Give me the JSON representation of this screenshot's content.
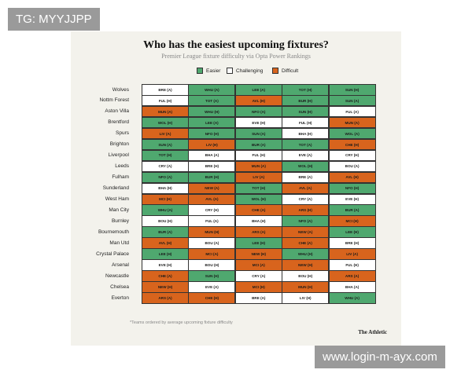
{
  "watermarks": {
    "top_left": "TG: MYYJJPP",
    "bottom_right": "www.login-m-ayx.com"
  },
  "header": {
    "title": "Who has the easiest upcoming fixtures?",
    "subtitle": "Premier League fixture difficulty via Opta Power Rankings"
  },
  "legend": {
    "items": [
      {
        "label": "Easier",
        "color": "#4fa86f"
      },
      {
        "label": "Challenging",
        "color": "#ffffff"
      },
      {
        "label": "Difficult",
        "color": "#d8641d"
      }
    ]
  },
  "table": {
    "rows": [
      {
        "team": "Wolves",
        "cells": [
          {
            "text": "BRE (A)",
            "level": 1
          },
          {
            "text": "WHU (A)",
            "level": 0
          },
          {
            "text": "LEE (A)",
            "level": 0
          },
          {
            "text": "TOT (H)",
            "level": 0
          },
          {
            "text": "SUN (H)",
            "level": 0
          }
        ]
      },
      {
        "team": "Nottm Forest",
        "cells": [
          {
            "text": "FUL (H)",
            "level": 1
          },
          {
            "text": "TOT (A)",
            "level": 0
          },
          {
            "text": "AVL (H)",
            "level": 2
          },
          {
            "text": "BUR (H)",
            "level": 0
          },
          {
            "text": "SUN (A)",
            "level": 0
          }
        ]
      },
      {
        "team": "Aston Villa",
        "cells": [
          {
            "text": "MUN (A)",
            "level": 2
          },
          {
            "text": "WHU (H)",
            "level": 0
          },
          {
            "text": "NFO (A)",
            "level": 0
          },
          {
            "text": "SUN (H)",
            "level": 0
          },
          {
            "text": "FUL (A)",
            "level": 1
          }
        ]
      },
      {
        "team": "Brentford",
        "cells": [
          {
            "text": "WOL (H)",
            "level": 0
          },
          {
            "text": "LEE (A)",
            "level": 0
          },
          {
            "text": "EVE (H)",
            "level": 1
          },
          {
            "text": "FUL (H)",
            "level": 1
          },
          {
            "text": "MUN (A)",
            "level": 2
          }
        ]
      },
      {
        "team": "Spurs",
        "cells": [
          {
            "text": "LIV (A)",
            "level": 2
          },
          {
            "text": "NFO (H)",
            "level": 0
          },
          {
            "text": "SUN (A)",
            "level": 0
          },
          {
            "text": "BHA (H)",
            "level": 1
          },
          {
            "text": "WOL (A)",
            "level": 0
          }
        ]
      },
      {
        "team": "Brighton",
        "cells": [
          {
            "text": "SUN (A)",
            "level": 0
          },
          {
            "text": "LIV (H)",
            "level": 2
          },
          {
            "text": "BUR (A)",
            "level": 0
          },
          {
            "text": "TOT (A)",
            "level": 0
          },
          {
            "text": "CHE (H)",
            "level": 2
          }
        ]
      },
      {
        "team": "Liverpool",
        "cells": [
          {
            "text": "TOT (H)",
            "level": 0
          },
          {
            "text": "BHA (A)",
            "level": 1
          },
          {
            "text": "FUL (H)",
            "level": 1
          },
          {
            "text": "EVE (A)",
            "level": 1
          },
          {
            "text": "CRY (H)",
            "level": 1
          }
        ]
      },
      {
        "team": "Leeds",
        "cells": [
          {
            "text": "CRY (A)",
            "level": 1
          },
          {
            "text": "BRE (H)",
            "level": 1
          },
          {
            "text": "MUN (A)",
            "level": 2
          },
          {
            "text": "WOL (H)",
            "level": 0
          },
          {
            "text": "BOU (A)",
            "level": 1
          }
        ]
      },
      {
        "team": "Fulham",
        "cells": [
          {
            "text": "NFO (A)",
            "level": 0
          },
          {
            "text": "BUR (H)",
            "level": 0
          },
          {
            "text": "LIV (A)",
            "level": 2
          },
          {
            "text": "BRE (A)",
            "level": 1
          },
          {
            "text": "AVL (H)",
            "level": 2
          }
        ]
      },
      {
        "team": "Sunderland",
        "cells": [
          {
            "text": "BHA (H)",
            "level": 1
          },
          {
            "text": "NEW (A)",
            "level": 2
          },
          {
            "text": "TOT (H)",
            "level": 0
          },
          {
            "text": "AVL (A)",
            "level": 2
          },
          {
            "text": "NFO (H)",
            "level": 0
          }
        ]
      },
      {
        "team": "West Ham",
        "cells": [
          {
            "text": "MCI (H)",
            "level": 2
          },
          {
            "text": "AVL (A)",
            "level": 2
          },
          {
            "text": "WOL (H)",
            "level": 0
          },
          {
            "text": "CRY (A)",
            "level": 1
          },
          {
            "text": "EVE (H)",
            "level": 1
          }
        ]
      },
      {
        "team": "Man City",
        "cells": [
          {
            "text": "WHU (A)",
            "level": 0
          },
          {
            "text": "CRY (H)",
            "level": 1
          },
          {
            "text": "CHE (A)",
            "level": 2
          },
          {
            "text": "ARS (H)",
            "level": 2
          },
          {
            "text": "BUR (A)",
            "level": 0
          }
        ]
      },
      {
        "team": "Burnley",
        "cells": [
          {
            "text": "BOU (H)",
            "level": 1
          },
          {
            "text": "FUL (A)",
            "level": 1
          },
          {
            "text": "BHA (H)",
            "level": 1
          },
          {
            "text": "NFO (A)",
            "level": 0
          },
          {
            "text": "MCI (H)",
            "level": 2
          }
        ]
      },
      {
        "team": "Bournemouth",
        "cells": [
          {
            "text": "BUR (A)",
            "level": 0
          },
          {
            "text": "MUN (H)",
            "level": 2
          },
          {
            "text": "ARS (A)",
            "level": 2
          },
          {
            "text": "NEW (A)",
            "level": 2
          },
          {
            "text": "LEE (H)",
            "level": 0
          }
        ]
      },
      {
        "team": "Man Utd",
        "cells": [
          {
            "text": "AVL (H)",
            "level": 2
          },
          {
            "text": "BOU (A)",
            "level": 1
          },
          {
            "text": "LEE (H)",
            "level": 0
          },
          {
            "text": "CHE (A)",
            "level": 2
          },
          {
            "text": "BRE (H)",
            "level": 1
          }
        ]
      },
      {
        "team": "Crystal Palace",
        "cells": [
          {
            "text": "LEE (H)",
            "level": 0
          },
          {
            "text": "MCI (A)",
            "level": 2
          },
          {
            "text": "NEW (H)",
            "level": 2
          },
          {
            "text": "WHU (H)",
            "level": 0
          },
          {
            "text": "LIV (A)",
            "level": 2
          }
        ]
      },
      {
        "team": "Arsenal",
        "cells": [
          {
            "text": "EVE (H)",
            "level": 1
          },
          {
            "text": "BOU (H)",
            "level": 1
          },
          {
            "text": "MCI (A)",
            "level": 2
          },
          {
            "text": "NEW (H)",
            "level": 2
          },
          {
            "text": "FUL (H)",
            "level": 1
          }
        ]
      },
      {
        "team": "Newcastle",
        "cells": [
          {
            "text": "CHE (A)",
            "level": 2
          },
          {
            "text": "SUN (H)",
            "level": 0
          },
          {
            "text": "CRY (A)",
            "level": 1
          },
          {
            "text": "BOU (H)",
            "level": 1
          },
          {
            "text": "ARS (A)",
            "level": 2
          }
        ]
      },
      {
        "team": "Chelsea",
        "cells": [
          {
            "text": "NEW (H)",
            "level": 2
          },
          {
            "text": "EVE (A)",
            "level": 1
          },
          {
            "text": "MCI (H)",
            "level": 2
          },
          {
            "text": "MUN (H)",
            "level": 2
          },
          {
            "text": "BHA (A)",
            "level": 1
          }
        ]
      },
      {
        "team": "Everton",
        "cells": [
          {
            "text": "ARS (A)",
            "level": 2
          },
          {
            "text": "CHE (H)",
            "level": 2
          },
          {
            "text": "BRE (A)",
            "level": 1
          },
          {
            "text": "LIV (H)",
            "level": 1
          },
          {
            "text": "WHU (A)",
            "level": 0
          }
        ]
      }
    ]
  },
  "footer": {
    "note": "*Teams ordered by average upcoming fixture difficulty",
    "brand": "The Athletic"
  }
}
